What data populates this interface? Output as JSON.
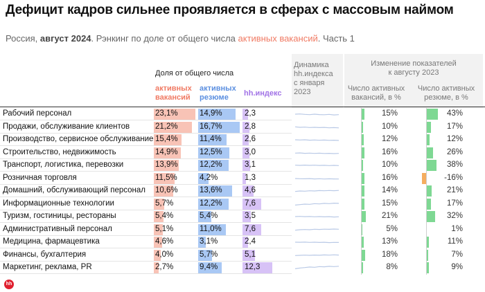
{
  "header": {
    "title": "Дефицит кадров сильнее проявляется в сферах с массовым наймом",
    "subtitle_pre": "Россия, ",
    "subtitle_bold": "август 2024",
    "subtitle_mid": ". Рэнкинг по доле от общего числа ",
    "subtitle_accent": "активных вакансий",
    "subtitle_post": ". Часть 1"
  },
  "columns": {
    "share_group": "Доля от общего числа",
    "vac_line1": "активных",
    "vac_line2": "вакансий",
    "res_line1": "активных",
    "res_line2": "резюме",
    "hh": "hh.индекс",
    "dyn_line1": "Динамика",
    "dyn_line2": "hh.индекса",
    "dyn_line3": "с января",
    "dyn_line4": "2023",
    "chg_line1": "Изменение показателей",
    "chg_line2": "к августу 2023",
    "chg_vac_line1": "Число активных",
    "chg_vac_line2": "вакансий, в %",
    "chg_res_line1": "Число активных",
    "chg_res_line2": "резюме, в %"
  },
  "colors": {
    "vacancies": "#f8c3b6",
    "resumes": "#a9c8f4",
    "hh_index": "#d7c2f6",
    "positive": "#7ed893",
    "negative": "#f5ad5f",
    "accent_text": "#f07a63"
  },
  "logo": {
    "text": "hh",
    "icon": "hh-logo-icon"
  },
  "chart_data": {
    "type": "table",
    "title": "Дефицит кадров сильнее проявляется в сферах с массовым наймом",
    "rows": [
      {
        "label": "Рабочий персонал",
        "vac": 23.1,
        "vac_label": "23,1%",
        "res": 14.9,
        "res_label": "14,9%",
        "hh": 2.3,
        "hh_label": "2,3",
        "chg_vac": 15,
        "chg_vac_label": "15%",
        "chg_res": 43,
        "chg_res_label": "43%"
      },
      {
        "label": "Продажи, обслуживание клиентов",
        "vac": 21.2,
        "vac_label": "21,2%",
        "res": 16.7,
        "res_label": "16,7%",
        "hh": 2.8,
        "hh_label": "2,8",
        "chg_vac": 10,
        "chg_vac_label": "10%",
        "chg_res": 17,
        "chg_res_label": "17%"
      },
      {
        "label": "Производство, сервисное обслуживание",
        "vac": 15.4,
        "vac_label": "15,4%",
        "res": 11.4,
        "res_label": "11,4%",
        "hh": 2.6,
        "hh_label": "2,6",
        "chg_vac": 12,
        "chg_vac_label": "12%",
        "chg_res": 12,
        "chg_res_label": "12%"
      },
      {
        "label": "Строительство, недвижимость",
        "vac": 14.9,
        "vac_label": "14,9%",
        "res": 12.5,
        "res_label": "12,5%",
        "hh": 3.0,
        "hh_label": "3,0",
        "chg_vac": 16,
        "chg_vac_label": "16%",
        "chg_res": 26,
        "chg_res_label": "26%"
      },
      {
        "label": "Транспорт, логистика, перевозки",
        "vac": 13.9,
        "vac_label": "13,9%",
        "res": 12.2,
        "res_label": "12,2%",
        "hh": 3.1,
        "hh_label": "3,1",
        "chg_vac": 10,
        "chg_vac_label": "10%",
        "chg_res": 38,
        "chg_res_label": "38%"
      },
      {
        "label": "Розничная торговля",
        "vac": 11.5,
        "vac_label": "11,5%",
        "res": 4.2,
        "res_label": "4,2%",
        "hh": 1.3,
        "hh_label": "1,3",
        "chg_vac": 16,
        "chg_vac_label": "16%",
        "chg_res": -16,
        "chg_res_label": "-16%"
      },
      {
        "label": "Домашний, обслуживающий персонал",
        "vac": 10.6,
        "vac_label": "10,6%",
        "res": 13.6,
        "res_label": "13,6%",
        "hh": 4.6,
        "hh_label": "4,6",
        "chg_vac": 14,
        "chg_vac_label": "14%",
        "chg_res": 21,
        "chg_res_label": "21%"
      },
      {
        "label": "Информационные технологии",
        "vac": 5.7,
        "vac_label": "5,7%",
        "res": 12.2,
        "res_label": "12,2%",
        "hh": 7.6,
        "hh_label": "7,6",
        "chg_vac": 15,
        "chg_vac_label": "15%",
        "chg_res": 17,
        "chg_res_label": "17%"
      },
      {
        "label": "Туризм, гостиницы, рестораны",
        "vac": 5.4,
        "vac_label": "5,4%",
        "res": 5.4,
        "res_label": "5,4%",
        "hh": 3.5,
        "hh_label": "3,5",
        "chg_vac": 21,
        "chg_vac_label": "21%",
        "chg_res": 32,
        "chg_res_label": "32%"
      },
      {
        "label": "Административный персонал",
        "vac": 5.1,
        "vac_label": "5,1%",
        "res": 11.0,
        "res_label": "11,0%",
        "hh": 7.6,
        "hh_label": "7,6",
        "chg_vac": 5,
        "chg_vac_label": "5%",
        "chg_res": 1,
        "chg_res_label": "1%"
      },
      {
        "label": "Медицина, фармацевтика",
        "vac": 4.6,
        "vac_label": "4,6%",
        "res": 3.1,
        "res_label": "3,1%",
        "hh": 2.4,
        "hh_label": "2,4",
        "chg_vac": 13,
        "chg_vac_label": "13%",
        "chg_res": 11,
        "chg_res_label": "11%"
      },
      {
        "label": "Финансы, бухгалтерия",
        "vac": 4.0,
        "vac_label": "4,0%",
        "res": 5.7,
        "res_label": "5,7%",
        "hh": 5.1,
        "hh_label": "5,1",
        "chg_vac": 18,
        "chg_vac_label": "18%",
        "chg_res": 7,
        "chg_res_label": "7%"
      },
      {
        "label": "Маркетинг, реклама, PR",
        "vac": 2.7,
        "vac_label": "2,7%",
        "res": 9.4,
        "res_label": "9,4%",
        "hh": 12.3,
        "hh_label": "12,3",
        "chg_vac": 8,
        "chg_vac_label": "8%",
        "chg_res": 9,
        "chg_res_label": "9%"
      }
    ]
  }
}
